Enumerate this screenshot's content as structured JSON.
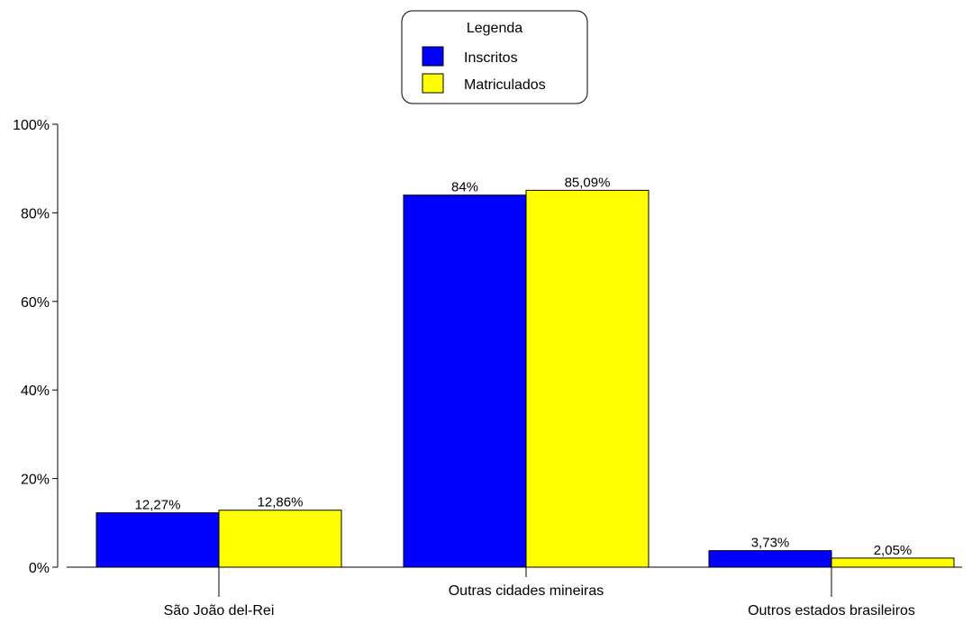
{
  "chart_data": {
    "type": "bar",
    "title": "",
    "xlabel": "",
    "ylabel": "",
    "ylim": [
      0,
      100
    ],
    "yticks": [
      "0%",
      "20%",
      "40%",
      "60%",
      "80%",
      "100%"
    ],
    "grid": false,
    "categories": [
      "São João del-Rei",
      "Outras cidades mineiras",
      "Outros estados brasileiros"
    ],
    "series": [
      {
        "name": "Inscritos",
        "values": [
          12.27,
          84,
          3.73
        ],
        "labels": [
          "12,27%",
          "84%",
          "3,73%"
        ],
        "color": "#0000ff"
      },
      {
        "name": "Matriculados",
        "values": [
          12.86,
          85.09,
          2.05
        ],
        "labels": [
          "12,86%",
          "85,09%",
          "2,05%"
        ],
        "color": "#ffff00"
      }
    ],
    "legend": {
      "title": "Legenda",
      "position": "top-center"
    }
  }
}
